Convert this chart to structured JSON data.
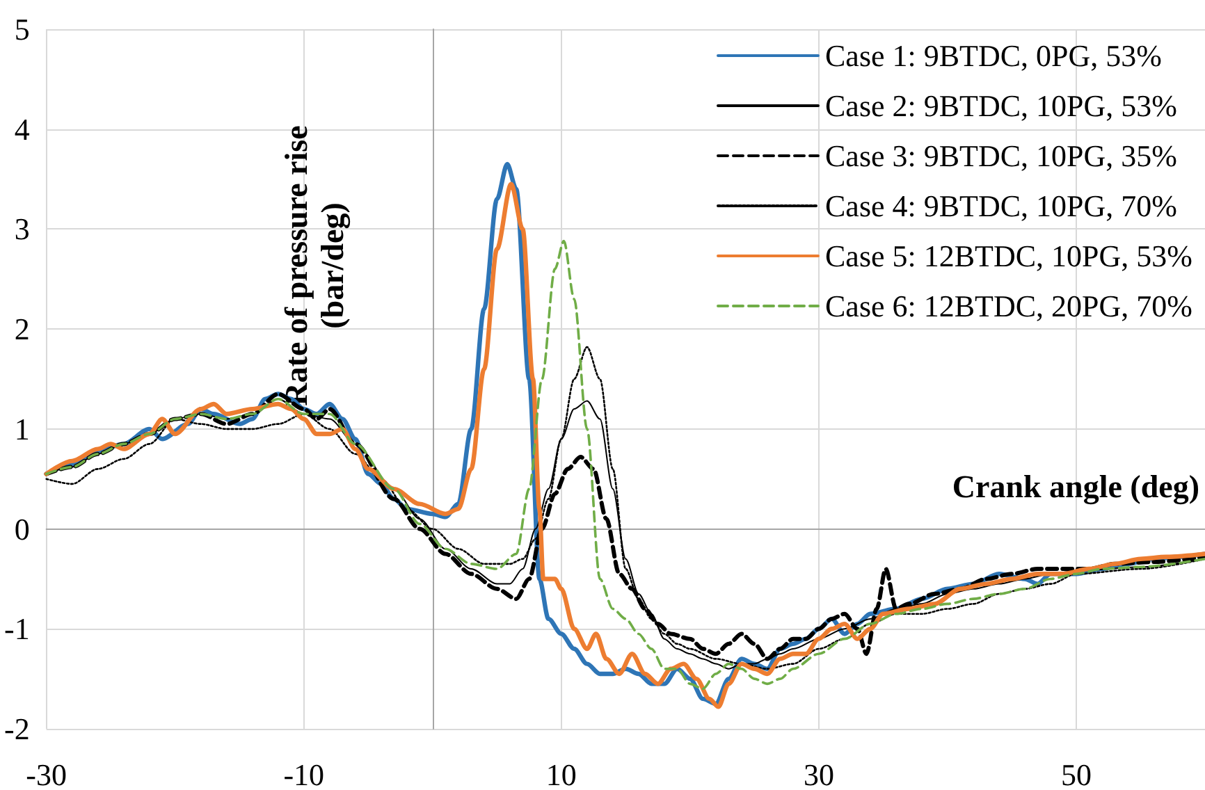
{
  "chart_data": {
    "type": "line",
    "xlabel": "Crank angle (deg)",
    "ylabel": "Rate of pressure rise\n(bar/deg)",
    "xlim": [
      -30,
      60
    ],
    "xticks": [
      -30,
      -10,
      10,
      30,
      50
    ],
    "ylim": [
      -2,
      5
    ],
    "yticks": [
      -2,
      -1,
      0,
      1,
      2,
      3,
      4,
      5
    ],
    "grid": true,
    "legend": "top right",
    "marker": "none",
    "series": [
      {
        "name": "Case 1: 9BTDC, 0PG, 53%",
        "color": "#2e75b6",
        "line_style": "solid",
        "x": [
          -30,
          -28,
          -26,
          -24,
          -22,
          -21,
          -19,
          -18,
          -17,
          -15,
          -14,
          -13,
          -12,
          -11,
          -10,
          -9,
          -8,
          -7,
          -6,
          -5,
          -4,
          -3,
          -2,
          0,
          1,
          2,
          3,
          4,
          5,
          5.8,
          6.5,
          7.5,
          8.3,
          9,
          10,
          11,
          12,
          13,
          14,
          15,
          16,
          17,
          18,
          19,
          20,
          21,
          22,
          23,
          24,
          25,
          26,
          27,
          28,
          29,
          30,
          31,
          32,
          33,
          34,
          36,
          38,
          40,
          42,
          44,
          46,
          47,
          48,
          50,
          52,
          54,
          56,
          58,
          60
        ],
        "values": [
          0.55,
          0.65,
          0.78,
          0.85,
          1.0,
          0.9,
          1.05,
          1.2,
          1.15,
          1.05,
          1.1,
          1.3,
          1.35,
          1.3,
          1.2,
          1.15,
          1.25,
          1.1,
          0.9,
          0.55,
          0.45,
          0.3,
          0.2,
          0.15,
          0.12,
          0.25,
          1.0,
          2.2,
          3.3,
          3.65,
          3.4,
          1.5,
          -0.5,
          -0.9,
          -1.05,
          -1.2,
          -1.35,
          -1.45,
          -1.45,
          -1.4,
          -1.45,
          -1.55,
          -1.55,
          -1.4,
          -1.5,
          -1.7,
          -1.75,
          -1.5,
          -1.3,
          -1.35,
          -1.4,
          -1.2,
          -1.15,
          -1.1,
          -1.0,
          -0.9,
          -1.05,
          -0.95,
          -0.85,
          -0.8,
          -0.7,
          -0.6,
          -0.55,
          -0.45,
          -0.5,
          -0.55,
          -0.45,
          -0.45,
          -0.4,
          -0.35,
          -0.3,
          -0.28,
          -0.25
        ]
      },
      {
        "name": "Case 2: 9BTDC, 10PG, 53%",
        "color": "#000000",
        "line_style": "solid",
        "x": [
          -30,
          -28,
          -26,
          -24,
          -22,
          -20,
          -18,
          -16,
          -14,
          -12,
          -10,
          -8,
          -6,
          -3,
          -1,
          1,
          3,
          5,
          6,
          7,
          8,
          9,
          10,
          11,
          12,
          13,
          14,
          15,
          16,
          17,
          18,
          19,
          20,
          21,
          22,
          23,
          24,
          25,
          26,
          27,
          28,
          30,
          32,
          34,
          36,
          38,
          40,
          42,
          44,
          46,
          48,
          50,
          55,
          60
        ],
        "values": [
          0.55,
          0.62,
          0.75,
          0.85,
          0.95,
          1.1,
          1.15,
          1.1,
          1.15,
          1.3,
          1.15,
          1.1,
          0.85,
          0.4,
          0.1,
          -0.2,
          -0.4,
          -0.55,
          -0.55,
          -0.4,
          0.0,
          0.4,
          0.9,
          1.2,
          1.28,
          1.1,
          0.4,
          -0.3,
          -0.65,
          -0.85,
          -1.1,
          -1.2,
          -1.25,
          -1.3,
          -1.35,
          -1.4,
          -1.35,
          -1.35,
          -1.3,
          -1.25,
          -1.2,
          -1.1,
          -1.0,
          -0.9,
          -0.8,
          -0.75,
          -0.65,
          -0.6,
          -0.55,
          -0.5,
          -0.45,
          -0.42,
          -0.38,
          -0.3
        ]
      },
      {
        "name": "Case 3: 9BTDC, 10PG, 35%",
        "color": "#000000",
        "line_style": "dashed",
        "x": [
          -30,
          -28,
          -26,
          -24,
          -22,
          -20,
          -18,
          -16,
          -14,
          -12,
          -10,
          -9,
          -8,
          -6,
          -3,
          -1,
          1,
          3,
          5,
          6.5,
          7.5,
          8.5,
          9.5,
          10.5,
          11.5,
          12.5,
          13.5,
          14.5,
          15.5,
          16.5,
          17.5,
          18.5,
          20,
          21,
          22,
          23,
          24,
          25,
          26,
          27,
          28,
          29,
          30,
          31,
          32,
          33,
          33.7,
          34.5,
          35.2,
          36,
          37,
          39,
          41,
          43,
          45,
          47,
          49,
          51,
          53,
          56,
          60
        ],
        "values": [
          0.55,
          0.62,
          0.75,
          0.85,
          0.95,
          1.1,
          1.15,
          1.05,
          1.15,
          1.35,
          1.2,
          1.1,
          1.2,
          0.85,
          0.3,
          0.0,
          -0.25,
          -0.45,
          -0.6,
          -0.7,
          -0.5,
          0.0,
          0.35,
          0.6,
          0.72,
          0.6,
          0.1,
          -0.45,
          -0.6,
          -0.8,
          -0.95,
          -1.05,
          -1.1,
          -1.2,
          -1.25,
          -1.15,
          -1.05,
          -1.15,
          -1.3,
          -1.2,
          -1.1,
          -1.1,
          -1.0,
          -0.9,
          -0.85,
          -1.0,
          -1.25,
          -0.8,
          -0.4,
          -0.8,
          -0.75,
          -0.65,
          -0.6,
          -0.5,
          -0.45,
          -0.4,
          -0.4,
          -0.4,
          -0.35,
          -0.33,
          -0.28
        ]
      },
      {
        "name": "Case 4: 9BTDC, 10PG, 70%",
        "color": "#000000",
        "line_style": "dotted",
        "x": [
          -30,
          -28,
          -26,
          -24,
          -22,
          -20,
          -18,
          -16,
          -14,
          -12,
          -10,
          -8,
          -6,
          -4,
          -2,
          0,
          2,
          4,
          6,
          7,
          8,
          9,
          10,
          11,
          12,
          13,
          14,
          15,
          16,
          17,
          18,
          19,
          20,
          22,
          24,
          26,
          28,
          30,
          32,
          34,
          36,
          38,
          40,
          42,
          44,
          46,
          48,
          50,
          55,
          60
        ],
        "values": [
          0.5,
          0.45,
          0.6,
          0.7,
          0.85,
          1.1,
          1.05,
          1.0,
          1.0,
          1.05,
          1.15,
          1.0,
          0.75,
          0.5,
          0.2,
          0.0,
          -0.2,
          -0.35,
          -0.35,
          -0.3,
          -0.1,
          0.3,
          0.9,
          1.5,
          1.82,
          1.5,
          0.6,
          -0.4,
          -0.7,
          -0.9,
          -1.05,
          -1.15,
          -1.2,
          -1.3,
          -1.35,
          -1.4,
          -1.35,
          -1.2,
          -1.1,
          -0.95,
          -0.85,
          -0.85,
          -0.8,
          -0.75,
          -0.65,
          -0.6,
          -0.55,
          -0.45,
          -0.4,
          -0.3
        ]
      },
      {
        "name": "Case 5: 12BTDC, 10PG, 53%",
        "color": "#ed7d31",
        "line_style": "solid",
        "x": [
          -30,
          -28,
          -26,
          -25,
          -24,
          -22,
          -21,
          -20,
          -18,
          -17,
          -16,
          -14,
          -12,
          -11,
          -10,
          -9,
          -8,
          -7,
          -6,
          -5,
          -3,
          -1,
          1,
          2,
          3,
          4,
          5,
          6.1,
          7,
          7.8,
          8.3,
          8.6,
          9.5,
          10,
          11,
          12,
          12.7,
          13.5,
          14.5,
          15.5,
          16.5,
          17.5,
          18.5,
          19.5,
          20.5,
          21.5,
          22.2,
          23,
          24,
          25,
          26,
          27,
          28,
          29,
          30,
          31,
          32,
          33,
          34,
          35,
          37,
          39,
          41,
          43,
          45,
          47,
          49,
          51,
          53,
          55,
          57,
          60
        ],
        "values": [
          0.55,
          0.68,
          0.8,
          0.85,
          0.8,
          0.95,
          1.1,
          0.95,
          1.2,
          1.25,
          1.15,
          1.2,
          1.25,
          1.2,
          1.1,
          0.95,
          0.95,
          1.0,
          0.8,
          0.6,
          0.4,
          0.25,
          0.15,
          0.2,
          0.6,
          1.6,
          2.8,
          3.45,
          3.0,
          1.5,
          0.2,
          -0.5,
          -0.5,
          -0.6,
          -1.0,
          -1.2,
          -1.05,
          -1.3,
          -1.45,
          -1.25,
          -1.45,
          -1.55,
          -1.4,
          -1.35,
          -1.5,
          -1.7,
          -1.78,
          -1.55,
          -1.35,
          -1.4,
          -1.45,
          -1.3,
          -1.25,
          -1.25,
          -1.1,
          -1.0,
          -0.95,
          -1.1,
          -1.0,
          -0.85,
          -0.8,
          -0.75,
          -0.6,
          -0.55,
          -0.5,
          -0.45,
          -0.45,
          -0.4,
          -0.35,
          -0.3,
          -0.28,
          -0.25
        ]
      },
      {
        "name": "Case 6: 12BTDC, 20PG, 70%",
        "color": "#70ad47",
        "line_style": "dashed",
        "x": [
          -30,
          -28,
          -26,
          -24,
          -22,
          -20,
          -18,
          -16,
          -14,
          -12,
          -10,
          -8,
          -6,
          -3,
          -1,
          1,
          3,
          5,
          6.5,
          7.5,
          8.5,
          9.5,
          10.2,
          11,
          12,
          13,
          14,
          15,
          16,
          17,
          18,
          19,
          20,
          21,
          22,
          23,
          24,
          25,
          26,
          27,
          28,
          30,
          32,
          34,
          36,
          38,
          40,
          42,
          44,
          46,
          48,
          50,
          52,
          55,
          60
        ],
        "values": [
          0.55,
          0.62,
          0.75,
          0.85,
          0.95,
          1.1,
          1.15,
          1.1,
          1.15,
          1.3,
          1.15,
          1.15,
          0.85,
          0.4,
          0.05,
          -0.2,
          -0.35,
          -0.4,
          -0.25,
          0.4,
          1.5,
          2.6,
          2.88,
          2.3,
          1.0,
          -0.5,
          -0.8,
          -0.9,
          -1.05,
          -1.2,
          -1.4,
          -1.4,
          -1.55,
          -1.6,
          -1.45,
          -1.35,
          -1.4,
          -1.5,
          -1.55,
          -1.5,
          -1.4,
          -1.25,
          -1.1,
          -0.95,
          -0.85,
          -0.8,
          -0.75,
          -0.7,
          -0.65,
          -0.6,
          -0.5,
          -0.45,
          -0.4,
          -0.38,
          -0.3
        ]
      }
    ]
  }
}
